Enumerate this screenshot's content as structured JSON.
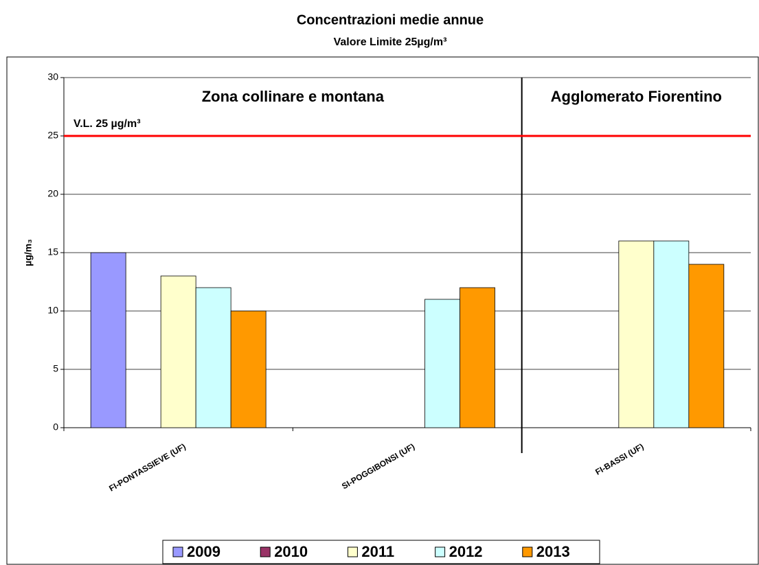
{
  "chart_data": {
    "type": "bar",
    "title": "Concentrazioni medie annue",
    "subtitle": "Valore Limite 25µg/m³",
    "y_label": "µg/m₃",
    "categories": [
      "FI-PONTASSIEVE (UF)",
      "SI-POGGIBONSI (UF)",
      "FI-BASSI (UF)"
    ],
    "series": [
      {
        "name": "2009",
        "color": "#9999ff",
        "values": [
          15,
          null,
          null
        ]
      },
      {
        "name": "2010",
        "color": "#993366",
        "values": [
          null,
          null,
          null
        ]
      },
      {
        "name": "2011",
        "color": "#ffffcc",
        "values": [
          13,
          null,
          16
        ]
      },
      {
        "name": "2012",
        "color": "#ccffff",
        "values": [
          12,
          11,
          16
        ]
      },
      {
        "name": "2013",
        "color": "#ff9900",
        "values": [
          10,
          12,
          14
        ]
      }
    ],
    "zones": [
      "Zona collinare e montana",
      "Agglomerato Fiorentino"
    ],
    "threshold": {
      "value": 25,
      "label": "V.L. 25 µg/m³",
      "color": "#ff0000"
    },
    "ylim": [
      0,
      30
    ],
    "yticks": [
      0,
      5,
      10,
      15,
      20,
      25,
      30
    ],
    "grid": true,
    "legend": "bottom"
  }
}
